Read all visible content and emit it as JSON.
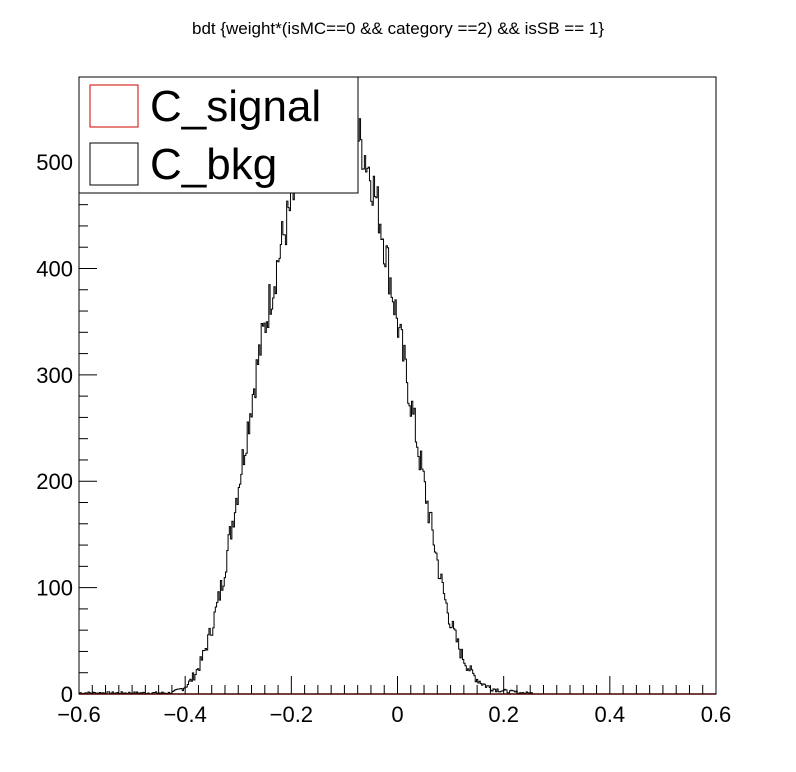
{
  "chart_data": {
    "type": "histogram",
    "title": "bdt {weight*(isMC==0 && category ==2) && isSB == 1}",
    "xlim": [
      -0.6,
      0.6
    ],
    "ylim": [
      0,
      580
    ],
    "x_ticks": [
      -0.6,
      -0.4,
      -0.2,
      0,
      0.2,
      0.4,
      0.6
    ],
    "x_tick_labels": [
      "−0.6",
      "−0.4",
      "−0.2",
      "0",
      "0.2",
      "0.4",
      "0.6"
    ],
    "y_ticks": [
      0,
      100,
      200,
      300,
      400,
      500
    ],
    "y_tick_labels": [
      "0",
      "100",
      "200",
      "300",
      "400",
      "500"
    ],
    "legend_position": "top-left",
    "legend": [
      {
        "label": "C_signal",
        "color": "#d00000"
      },
      {
        "label": "C_bkg",
        "color": "#000000"
      }
    ],
    "series": [
      {
        "name": "C_signal",
        "color": "#d00000",
        "x": [
          -0.6,
          0.6
        ],
        "values": [
          0,
          0
        ]
      },
      {
        "name": "C_bkg",
        "color": "#000000",
        "x": [
          -0.43,
          -0.42,
          -0.41,
          -0.4,
          -0.39,
          -0.38,
          -0.37,
          -0.36,
          -0.35,
          -0.34,
          -0.33,
          -0.32,
          -0.31,
          -0.3,
          -0.29,
          -0.28,
          -0.27,
          -0.26,
          -0.25,
          -0.24,
          -0.23,
          -0.22,
          -0.21,
          -0.2,
          -0.19,
          -0.18,
          -0.17,
          -0.16,
          -0.15,
          -0.14,
          -0.13,
          -0.12,
          -0.11,
          -0.1,
          -0.09,
          -0.08,
          -0.07,
          -0.06,
          -0.05,
          -0.04,
          -0.03,
          -0.02,
          -0.01,
          0.0,
          0.01,
          0.02,
          0.03,
          0.04,
          0.05,
          0.06,
          0.07,
          0.08,
          0.09,
          0.1,
          0.11,
          0.12,
          0.13,
          0.14,
          0.15,
          0.16,
          0.17,
          0.18,
          0.19,
          0.2,
          0.21,
          0.22,
          0.23,
          0.24,
          0.25,
          0.26,
          0.27,
          0.28,
          0.29
        ],
        "values": [
          1,
          2,
          4,
          7,
          12,
          20,
          30,
          45,
          62,
          82,
          105,
          135,
          165,
          195,
          225,
          258,
          290,
          320,
          345,
          372,
          395,
          420,
          440,
          460,
          475,
          490,
          505,
          515,
          525,
          532,
          540,
          545,
          548,
          545,
          540,
          532,
          520,
          505,
          488,
          465,
          440,
          410,
          380,
          350,
          320,
          290,
          260,
          228,
          198,
          168,
          140,
          112,
          88,
          68,
          52,
          38,
          28,
          20,
          14,
          10,
          7,
          5,
          4,
          3,
          2,
          2,
          1,
          1,
          1,
          0,
          0,
          0,
          0
        ]
      }
    ]
  }
}
